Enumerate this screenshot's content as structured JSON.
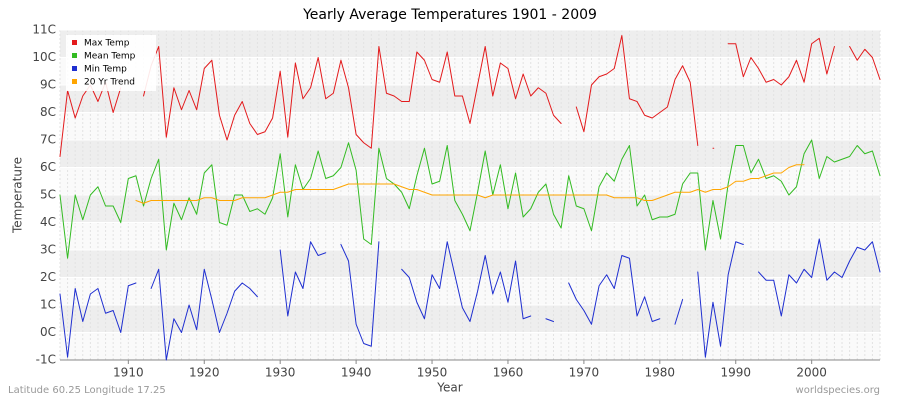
{
  "chart_data": {
    "type": "line",
    "title": "Yearly Average Temperatures 1901 - 2009",
    "x_label": "Year",
    "y_label": "Temperature",
    "footer_left": "Latitude 60.25 Longitude 17.25",
    "footer_right": "worldspecies.org",
    "x": [
      1901,
      1902,
      1903,
      1904,
      1905,
      1906,
      1907,
      1908,
      1909,
      1910,
      1911,
      1912,
      1913,
      1914,
      1915,
      1916,
      1917,
      1918,
      1919,
      1920,
      1921,
      1922,
      1923,
      1924,
      1925,
      1926,
      1927,
      1928,
      1929,
      1930,
      1931,
      1932,
      1933,
      1934,
      1935,
      1936,
      1937,
      1938,
      1939,
      1940,
      1941,
      1942,
      1943,
      1944,
      1945,
      1946,
      1947,
      1948,
      1949,
      1950,
      1951,
      1952,
      1953,
      1954,
      1955,
      1956,
      1957,
      1958,
      1959,
      1960,
      1961,
      1962,
      1963,
      1964,
      1965,
      1966,
      1967,
      1968,
      1969,
      1970,
      1971,
      1972,
      1973,
      1974,
      1975,
      1976,
      1977,
      1978,
      1979,
      1980,
      1981,
      1982,
      1983,
      1984,
      1985,
      1986,
      1987,
      1988,
      1989,
      1990,
      1991,
      1992,
      1993,
      1994,
      1995,
      1996,
      1997,
      1998,
      1999,
      2000,
      2001,
      2002,
      2003,
      2004,
      2005,
      2006,
      2007,
      2008,
      2009
    ],
    "series": [
      {
        "name": "Max Temp",
        "color": "#e31a1c",
        "values": [
          6.4,
          8.8,
          7.8,
          8.6,
          9.0,
          8.4,
          9.1,
          8.0,
          8.9,
          null,
          null,
          8.6,
          9.7,
          10.4,
          7.1,
          8.9,
          8.1,
          8.8,
          8.1,
          9.6,
          9.9,
          7.9,
          7.0,
          7.9,
          8.4,
          7.6,
          7.2,
          7.3,
          7.8,
          9.5,
          7.1,
          9.8,
          8.5,
          8.9,
          10.0,
          8.5,
          8.7,
          9.9,
          8.9,
          7.2,
          6.9,
          6.7,
          10.4,
          8.7,
          8.6,
          8.4,
          8.4,
          10.2,
          9.9,
          9.2,
          9.1,
          10.2,
          8.6,
          8.6,
          7.6,
          9.0,
          10.4,
          8.6,
          9.8,
          9.6,
          8.5,
          9.4,
          8.6,
          8.9,
          8.7,
          7.9,
          7.6,
          null,
          8.2,
          7.3,
          9.0,
          9.3,
          9.4,
          9.6,
          10.8,
          8.5,
          8.4,
          7.9,
          7.8,
          8.0,
          8.2,
          9.2,
          9.7,
          9.1,
          6.8,
          null,
          6.7,
          null,
          10.5,
          10.5,
          9.3,
          10.0,
          9.6,
          9.1,
          9.2,
          9.0,
          9.3,
          9.9,
          9.1,
          10.5,
          10.7,
          9.4,
          10.4,
          null,
          10.4,
          9.9,
          10.3,
          10.0,
          9.2
        ]
      },
      {
        "name": "Mean Temp",
        "color": "#33bb22",
        "values": [
          5.0,
          2.7,
          5.0,
          4.1,
          5.0,
          5.3,
          4.6,
          4.6,
          4.0,
          5.6,
          5.7,
          4.6,
          5.6,
          6.3,
          3.0,
          4.7,
          4.1,
          4.9,
          4.3,
          5.8,
          6.1,
          4.0,
          3.9,
          5.0,
          5.0,
          4.4,
          4.5,
          4.3,
          4.9,
          6.5,
          4.2,
          6.1,
          5.2,
          5.6,
          6.6,
          5.6,
          5.7,
          6.0,
          6.9,
          5.9,
          3.4,
          3.2,
          6.7,
          5.6,
          5.4,
          5.1,
          4.5,
          5.7,
          6.7,
          5.4,
          5.5,
          6.8,
          4.8,
          4.3,
          3.7,
          5.1,
          6.6,
          5.0,
          6.1,
          4.5,
          5.8,
          4.2,
          4.5,
          5.1,
          5.4,
          4.3,
          3.8,
          5.7,
          4.6,
          4.5,
          3.7,
          5.3,
          5.8,
          5.5,
          6.3,
          6.8,
          4.6,
          5.0,
          4.1,
          4.2,
          4.2,
          4.3,
          5.4,
          5.8,
          5.8,
          3.0,
          4.8,
          3.4,
          5.4,
          6.8,
          6.8,
          5.8,
          6.3,
          5.6,
          5.7,
          5.5,
          5.0,
          5.3,
          6.5,
          7.0,
          5.6,
          6.4,
          6.2,
          6.3,
          6.4,
          6.8,
          6.5,
          6.6,
          5.7
        ]
      },
      {
        "name": "Min Temp",
        "color": "#1f2fd0",
        "values": [
          1.4,
          -0.9,
          1.6,
          0.4,
          1.4,
          1.6,
          0.7,
          0.8,
          0.0,
          1.7,
          1.8,
          null,
          1.6,
          2.3,
          -1.0,
          0.5,
          0.0,
          1.0,
          0.1,
          2.3,
          1.2,
          0.0,
          0.7,
          1.5,
          1.8,
          1.6,
          1.3,
          null,
          null,
          3.0,
          0.6,
          2.2,
          1.6,
          3.3,
          2.8,
          2.9,
          null,
          3.2,
          2.6,
          0.3,
          -0.4,
          -0.5,
          3.3,
          null,
          null,
          2.3,
          2.0,
          1.1,
          0.5,
          2.1,
          1.6,
          3.3,
          2.1,
          0.9,
          0.4,
          1.5,
          2.8,
          1.4,
          2.2,
          1.1,
          2.6,
          0.5,
          0.6,
          null,
          0.5,
          0.4,
          null,
          1.8,
          1.2,
          0.8,
          0.3,
          1.7,
          2.1,
          1.6,
          2.8,
          2.7,
          0.6,
          1.3,
          0.4,
          0.5,
          null,
          0.3,
          1.2,
          null,
          2.2,
          -0.9,
          1.1,
          -0.5,
          2.1,
          3.3,
          3.2,
          null,
          2.2,
          1.9,
          1.9,
          0.6,
          2.1,
          1.8,
          2.3,
          2.0,
          3.4,
          1.9,
          2.2,
          2.0,
          2.6,
          3.1,
          3.0,
          3.3,
          2.2
        ]
      },
      {
        "name": "20 Yr Trend",
        "color": "#ffa500",
        "values": [
          null,
          null,
          null,
          null,
          null,
          null,
          null,
          null,
          null,
          null,
          4.8,
          4.7,
          4.8,
          4.8,
          4.8,
          4.8,
          4.8,
          4.8,
          4.8,
          4.9,
          4.9,
          4.8,
          4.8,
          4.8,
          4.9,
          4.9,
          4.9,
          4.9,
          5.0,
          5.1,
          5.1,
          5.2,
          5.2,
          5.2,
          5.2,
          5.2,
          5.2,
          5.3,
          5.4,
          5.4,
          5.4,
          5.4,
          5.4,
          5.4,
          5.4,
          5.3,
          5.2,
          5.2,
          5.1,
          5.0,
          5.0,
          5.0,
          5.0,
          5.0,
          5.0,
          5.0,
          4.9,
          5.0,
          5.0,
          5.0,
          5.0,
          5.0,
          5.0,
          5.0,
          5.0,
          5.0,
          5.0,
          5.0,
          5.0,
          5.0,
          5.0,
          5.0,
          5.0,
          4.9,
          4.9,
          4.9,
          4.9,
          4.8,
          4.8,
          4.9,
          5.0,
          5.1,
          5.1,
          5.1,
          5.2,
          5.1,
          5.2,
          5.2,
          5.3,
          5.5,
          5.5,
          5.6,
          5.6,
          5.7,
          5.8,
          5.8,
          6.0,
          6.1,
          6.1,
          null,
          null,
          null,
          null,
          null,
          null,
          null,
          null,
          null,
          null
        ]
      }
    ],
    "xlim": [
      1901,
      2009
    ],
    "xticks": [
      1910,
      1920,
      1930,
      1940,
      1950,
      1960,
      1970,
      1980,
      1990,
      2000
    ],
    "ylim": [
      -1,
      11
    ],
    "yticks": [
      {
        "value": -1,
        "label": "-1C"
      },
      {
        "value": 0,
        "label": "0C"
      },
      {
        "value": 1,
        "label": "1C"
      },
      {
        "value": 2,
        "label": "2C"
      },
      {
        "value": 3,
        "label": "3C"
      },
      {
        "value": 4,
        "label": "4C"
      },
      {
        "value": 5,
        "label": "5C"
      },
      {
        "value": 6,
        "label": "6C"
      },
      {
        "value": 7,
        "label": "7C"
      },
      {
        "value": 8,
        "label": "8C"
      },
      {
        "value": 9,
        "label": "9C"
      },
      {
        "value": 10,
        "label": "10C"
      },
      {
        "value": 11,
        "label": "11C"
      }
    ],
    "grid": true,
    "legend": "top-left"
  }
}
